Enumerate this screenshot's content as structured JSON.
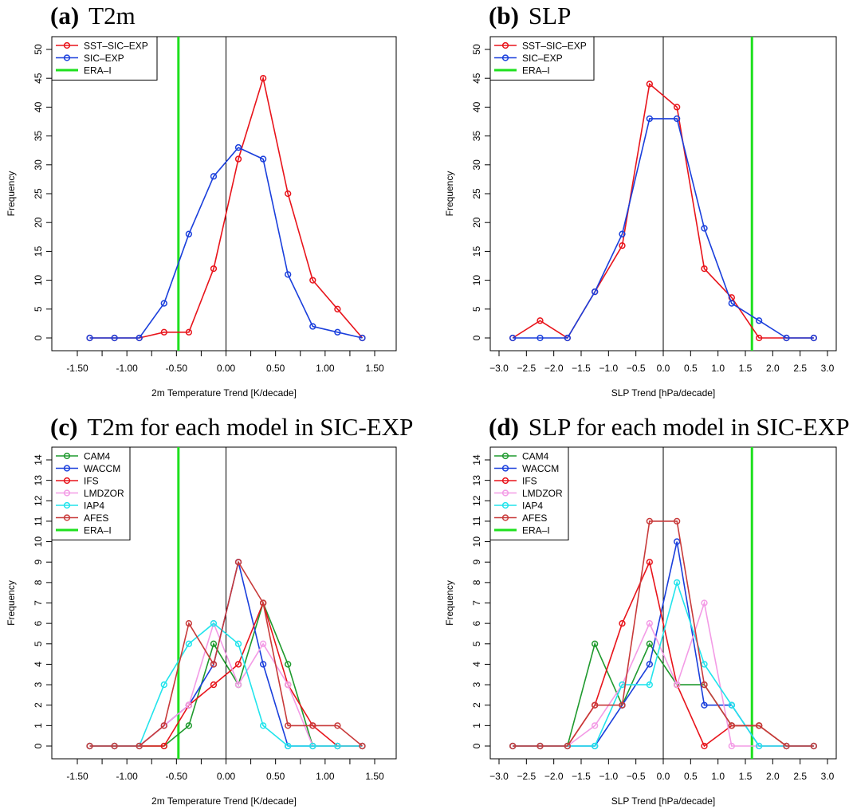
{
  "chart_data": [
    {
      "panel": "(a)",
      "title": "T2m",
      "type": "line",
      "xlabel": "2m Temperature Trend [K/decade]",
      "ylabel": "Frequency",
      "xlim": [
        -1.5,
        1.5
      ],
      "ylim": [
        0,
        50
      ],
      "xticks": [
        -1.5,
        -1.25,
        -1.0,
        -0.75,
        -0.5,
        -0.25,
        0.0,
        0.25,
        0.5,
        0.75,
        1.0,
        1.25,
        1.5
      ],
      "xtick_labels": [
        "-1.50",
        "",
        "-1.00",
        "",
        "-0.50",
        "",
        "0.00",
        "",
        "0.50",
        "",
        "1.00",
        "",
        "1.50"
      ],
      "yticks": [
        0,
        5,
        10,
        15,
        20,
        25,
        30,
        35,
        40,
        45,
        50
      ],
      "x": [
        -1.375,
        -1.125,
        -0.875,
        -0.625,
        -0.375,
        -0.125,
        0.125,
        0.375,
        0.625,
        0.875,
        1.125,
        1.375
      ],
      "series": [
        {
          "name": "SST–SIC–EXP",
          "color": "#e8141b",
          "values": [
            0,
            0,
            0,
            1,
            1,
            12,
            31,
            45,
            25,
            10,
            5,
            0
          ]
        },
        {
          "name": "SIC–EXP",
          "color": "#1a3fdc",
          "values": [
            0,
            0,
            0,
            6,
            18,
            28,
            33,
            31,
            11,
            2,
            1,
            0
          ]
        }
      ],
      "reference": {
        "name": "ERA–I",
        "color": "#1ee01e",
        "x": -0.48
      },
      "legend": "top-left"
    },
    {
      "panel": "(b)",
      "title": "SLP",
      "type": "line",
      "xlabel": "SLP Trend [hPa/decade]",
      "ylabel": "Frequency",
      "xlim": [
        -3.0,
        3.0
      ],
      "ylim": [
        0,
        50
      ],
      "xticks": [
        -3.0,
        -2.5,
        -2.0,
        -1.5,
        -1.0,
        -0.5,
        0.0,
        0.5,
        1.0,
        1.5,
        2.0,
        2.5,
        3.0
      ],
      "xtick_labels": [
        "−3.0",
        "−2.5",
        "−2.0",
        "−1.5",
        "−1.0",
        "−0.5",
        "0.0",
        "0.5",
        "1.0",
        "1.5",
        "2.0",
        "2.5",
        "3.0"
      ],
      "yticks": [
        0,
        5,
        10,
        15,
        20,
        25,
        30,
        35,
        40,
        45,
        50
      ],
      "x": [
        -2.75,
        -2.25,
        -1.75,
        -1.25,
        -0.75,
        -0.25,
        0.25,
        0.75,
        1.25,
        1.75,
        2.25,
        2.75
      ],
      "series": [
        {
          "name": "SST–SIC–EXP",
          "color": "#e8141b",
          "values": [
            0,
            3,
            0,
            8,
            16,
            44,
            40,
            12,
            7,
            0,
            0,
            0
          ]
        },
        {
          "name": "SIC–EXP",
          "color": "#1a3fdc",
          "values": [
            0,
            0,
            0,
            8,
            18,
            38,
            38,
            19,
            6,
            3,
            0,
            0
          ]
        }
      ],
      "reference": {
        "name": "ERA–I",
        "color": "#1ee01e",
        "x": 1.62
      },
      "legend": "top-left"
    },
    {
      "panel": "(c)",
      "title": "T2m for each model in SIC-EXP",
      "type": "line",
      "xlabel": "2m Temperature Trend [K/decade]",
      "ylabel": "Frequency",
      "xlim": [
        -1.5,
        1.5
      ],
      "ylim": [
        0,
        14
      ],
      "xticks": [
        -1.5,
        -1.25,
        -1.0,
        -0.75,
        -0.5,
        -0.25,
        0.0,
        0.25,
        0.5,
        0.75,
        1.0,
        1.25,
        1.5
      ],
      "xtick_labels": [
        "-1.50",
        "",
        "-1.00",
        "",
        "-0.50",
        "",
        "0.00",
        "",
        "0.50",
        "",
        "1.00",
        "",
        "1.50"
      ],
      "yticks": [
        0,
        1,
        2,
        3,
        4,
        5,
        6,
        7,
        8,
        9,
        10,
        11,
        12,
        13,
        14
      ],
      "x": [
        -1.375,
        -1.125,
        -0.875,
        -0.625,
        -0.375,
        -0.125,
        0.125,
        0.375,
        0.625,
        0.875,
        1.125,
        1.375
      ],
      "series": [
        {
          "name": "CAM4",
          "color": "#1f9a2e",
          "values": [
            0,
            0,
            0,
            0,
            1,
            5,
            3,
            7,
            4,
            0,
            0,
            0
          ]
        },
        {
          "name": "WACCM",
          "color": "#1a3fdc",
          "values": [
            0,
            0,
            0,
            1,
            2,
            4,
            9,
            4,
            0,
            0,
            0,
            0
          ]
        },
        {
          "name": "IFS",
          "color": "#e8141b",
          "values": [
            0,
            0,
            0,
            0,
            2,
            3,
            4,
            7,
            3,
            1,
            0,
            0
          ]
        },
        {
          "name": "LMDZOR",
          "color": "#f39be6",
          "values": [
            0,
            0,
            0,
            1,
            2,
            6,
            3,
            5,
            3,
            0,
            0,
            0
          ]
        },
        {
          "name": "IAP4",
          "color": "#22e4ec",
          "values": [
            0,
            0,
            0,
            3,
            5,
            6,
            5,
            1,
            0,
            0,
            0,
            0
          ]
        },
        {
          "name": "AFES",
          "color": "#c83a3a",
          "values": [
            0,
            0,
            0,
            1,
            6,
            4,
            9,
            7,
            1,
            1,
            1,
            0
          ]
        }
      ],
      "reference": {
        "name": "ERA–I",
        "color": "#1ee01e",
        "x": -0.48
      },
      "legend": "top-left"
    },
    {
      "panel": "(d)",
      "title": "SLP for each model in SIC-EXP",
      "type": "line",
      "xlabel": "SLP Trend [hPa/decade]",
      "ylabel": "Frequency",
      "xlim": [
        -3.0,
        3.0
      ],
      "ylim": [
        0,
        14
      ],
      "xticks": [
        -3.0,
        -2.5,
        -2.0,
        -1.5,
        -1.0,
        -0.5,
        0.0,
        0.5,
        1.0,
        1.5,
        2.0,
        2.5,
        3.0
      ],
      "xtick_labels": [
        "−3.0",
        "−2.5",
        "−2.0",
        "−1.5",
        "−1.0",
        "−0.5",
        "0.0",
        "0.5",
        "1.0",
        "1.5",
        "2.0",
        "2.5",
        "3.0"
      ],
      "yticks": [
        0,
        1,
        2,
        3,
        4,
        5,
        6,
        7,
        8,
        9,
        10,
        11,
        12,
        13,
        14
      ],
      "x": [
        -2.75,
        -2.25,
        -1.75,
        -1.25,
        -0.75,
        -0.25,
        0.25,
        0.75,
        1.25,
        1.75,
        2.25,
        2.75
      ],
      "series": [
        {
          "name": "CAM4",
          "color": "#1f9a2e",
          "values": [
            0,
            0,
            0,
            5,
            2,
            5,
            3,
            3,
            1,
            1,
            0,
            0
          ]
        },
        {
          "name": "WACCM",
          "color": "#1a3fdc",
          "values": [
            0,
            0,
            0,
            0,
            2,
            4,
            10,
            2,
            2,
            0,
            0,
            0
          ]
        },
        {
          "name": "IFS",
          "color": "#e8141b",
          "values": [
            0,
            0,
            0,
            2,
            6,
            9,
            3,
            0,
            1,
            1,
            0,
            0
          ]
        },
        {
          "name": "LMDZOR",
          "color": "#f39be6",
          "values": [
            0,
            0,
            0,
            1,
            3,
            6,
            3,
            7,
            0,
            0,
            0,
            0
          ]
        },
        {
          "name": "IAP4",
          "color": "#22e4ec",
          "values": [
            0,
            0,
            0,
            0,
            3,
            3,
            8,
            4,
            2,
            0,
            0,
            0
          ]
        },
        {
          "name": "AFES",
          "color": "#c83a3a",
          "values": [
            0,
            0,
            0,
            2,
            2,
            11,
            11,
            3,
            1,
            1,
            0,
            0
          ]
        }
      ],
      "reference": {
        "name": "ERA–I",
        "color": "#1ee01e",
        "x": 1.62
      },
      "legend": "top-left"
    }
  ]
}
